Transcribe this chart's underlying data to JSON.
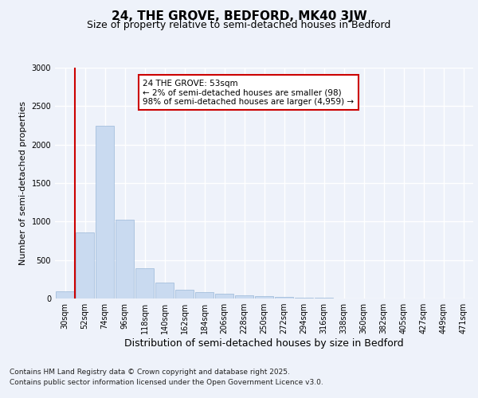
{
  "title": "24, THE GROVE, BEDFORD, MK40 3JW",
  "subtitle": "Size of property relative to semi-detached houses in Bedford",
  "xlabel": "Distribution of semi-detached houses by size in Bedford",
  "ylabel": "Number of semi-detached properties",
  "categories": [
    "30sqm",
    "52sqm",
    "74sqm",
    "96sqm",
    "118sqm",
    "140sqm",
    "162sqm",
    "184sqm",
    "206sqm",
    "228sqm",
    "250sqm",
    "272sqm",
    "294sqm",
    "316sqm",
    "338sqm",
    "360sqm",
    "382sqm",
    "405sqm",
    "427sqm",
    "449sqm",
    "471sqm"
  ],
  "values": [
    98,
    860,
    2250,
    1020,
    390,
    205,
    115,
    80,
    65,
    45,
    30,
    20,
    15,
    10,
    5,
    3,
    1,
    0,
    0,
    0,
    0
  ],
  "bar_color": "#c9daf0",
  "bar_edge_color": "#9ab8d8",
  "highlight_line_color": "#cc0000",
  "annotation_text": "24 THE GROVE: 53sqm\n← 2% of semi-detached houses are smaller (98)\n98% of semi-detached houses are larger (4,959) →",
  "annotation_box_facecolor": "#ffffff",
  "annotation_box_edgecolor": "#cc0000",
  "annotation_fontsize": 7.5,
  "ylim": [
    0,
    3000
  ],
  "yticks": [
    0,
    500,
    1000,
    1500,
    2000,
    2500,
    3000
  ],
  "footer_line1": "Contains HM Land Registry data © Crown copyright and database right 2025.",
  "footer_line2": "Contains public sector information licensed under the Open Government Licence v3.0.",
  "bg_color": "#eef2fa",
  "plot_bg_color": "#eef2fa",
  "grid_color": "#ffffff",
  "title_fontsize": 11,
  "subtitle_fontsize": 9,
  "xlabel_fontsize": 9,
  "ylabel_fontsize": 8,
  "tick_fontsize": 7,
  "footer_fontsize": 6.5
}
